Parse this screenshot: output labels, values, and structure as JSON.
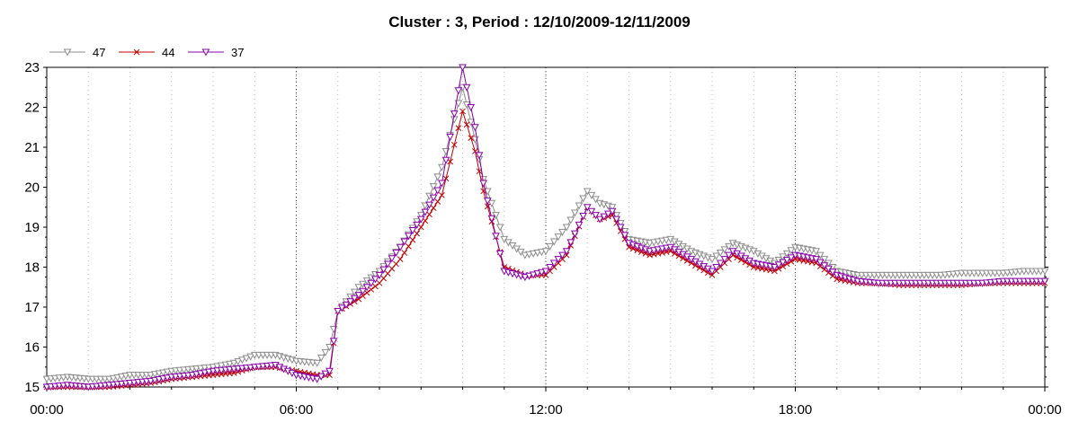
{
  "chart_data": {
    "type": "line",
    "title": "Cluster : 3, Period : 12/10/2009-12/11/2009",
    "xlabel": "",
    "ylabel": "",
    "x_ticks": [
      "00:00",
      "06:00",
      "12:00",
      "18:00",
      "00:00"
    ],
    "y_ticks": [
      "15",
      "16",
      "17",
      "18",
      "19",
      "20",
      "21",
      "22",
      "23"
    ],
    "xlim": [
      0,
      24
    ],
    "ylim": [
      15,
      23
    ],
    "grid": true,
    "legend_position": "top-left",
    "x_unit": "hours",
    "x": [
      0,
      0.5,
      1,
      1.5,
      2,
      2.5,
      3,
      3.5,
      4,
      4.5,
      5,
      5.5,
      6,
      6.5,
      6.8,
      7,
      7.5,
      8,
      8.5,
      9,
      9.5,
      10,
      10.3,
      10.5,
      11,
      11.5,
      12,
      12.5,
      13,
      13.3,
      13.6,
      14,
      14.5,
      15,
      15.5,
      16,
      16.5,
      17,
      17.5,
      18,
      18.5,
      19,
      19.5,
      20,
      20.5,
      21,
      21.5,
      22,
      22.5,
      23,
      23.5,
      24
    ],
    "series": [
      {
        "name": "47",
        "color": "#8c8c8c",
        "marker": "triangle-down",
        "values": [
          15.2,
          15.25,
          15.2,
          15.2,
          15.3,
          15.3,
          15.4,
          15.45,
          15.5,
          15.6,
          15.8,
          15.8,
          15.65,
          15.6,
          16.0,
          16.9,
          17.5,
          17.9,
          18.5,
          19.3,
          20.5,
          22.5,
          21.2,
          20.2,
          18.7,
          18.3,
          18.4,
          19.0,
          19.9,
          19.6,
          19.5,
          18.7,
          18.6,
          18.7,
          18.4,
          18.2,
          18.6,
          18.4,
          18.1,
          18.5,
          18.4,
          17.9,
          17.8,
          17.8,
          17.8,
          17.8,
          17.8,
          17.85,
          17.85,
          17.85,
          17.9,
          17.9
        ]
      },
      {
        "name": "44",
        "color": "#c00000",
        "marker": "x",
        "values": [
          15.0,
          15.0,
          15.0,
          15.0,
          15.05,
          15.1,
          15.2,
          15.25,
          15.3,
          15.35,
          15.5,
          15.5,
          15.4,
          15.3,
          15.3,
          16.9,
          17.2,
          17.6,
          18.2,
          19.0,
          19.8,
          21.9,
          20.9,
          19.9,
          18.0,
          17.8,
          17.8,
          18.3,
          19.5,
          19.2,
          19.3,
          18.5,
          18.3,
          18.4,
          18.1,
          17.8,
          18.3,
          18.0,
          17.9,
          18.2,
          18.1,
          17.7,
          17.6,
          17.6,
          17.55,
          17.55,
          17.55,
          17.55,
          17.6,
          17.6,
          17.6,
          17.6
        ]
      },
      {
        "name": "37",
        "color": "#8800aa",
        "marker": "triangle-down",
        "values": [
          15.0,
          15.05,
          15.0,
          15.05,
          15.1,
          15.15,
          15.25,
          15.3,
          15.4,
          15.45,
          15.5,
          15.55,
          15.3,
          15.2,
          15.4,
          16.9,
          17.3,
          17.8,
          18.5,
          19.2,
          20.1,
          23.0,
          21.5,
          20.1,
          17.9,
          17.75,
          17.9,
          18.4,
          19.5,
          19.2,
          19.4,
          18.6,
          18.4,
          18.5,
          18.2,
          17.9,
          18.4,
          18.1,
          18.0,
          18.3,
          18.2,
          17.8,
          17.65,
          17.6,
          17.6,
          17.6,
          17.6,
          17.6,
          17.6,
          17.65,
          17.65,
          17.65
        ]
      }
    ]
  }
}
